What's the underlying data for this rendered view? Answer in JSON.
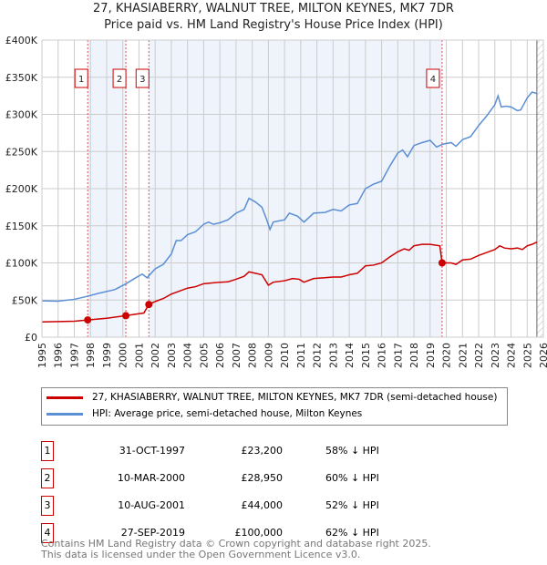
{
  "chart_data": {
    "type": "line",
    "title": "27, KHASIABERRY, WALNUT TREE, MILTON KEYNES, MK7 7DR",
    "subtitle": "Price paid vs. HM Land Registry's House Price Index (HPI)",
    "xlim": [
      1995,
      2026
    ],
    "ylim": [
      0,
      400000
    ],
    "x_ticks": [
      "1995",
      "1996",
      "1997",
      "1998",
      "1999",
      "2000",
      "2001",
      "2002",
      "2003",
      "2004",
      "2005",
      "2006",
      "2007",
      "2008",
      "2009",
      "2010",
      "2011",
      "2012",
      "2013",
      "2014",
      "2015",
      "2016",
      "2017",
      "2018",
      "2019",
      "2020",
      "2021",
      "2022",
      "2023",
      "2024",
      "2025",
      "2026"
    ],
    "y_ticks": [
      {
        "v": 0,
        "l": "£0"
      },
      {
        "v": 50000,
        "l": "£50K"
      },
      {
        "v": 100000,
        "l": "£100K"
      },
      {
        "v": 150000,
        "l": "£150K"
      },
      {
        "v": 200000,
        "l": "£200K"
      },
      {
        "v": 250000,
        "l": "£250K"
      },
      {
        "v": 300000,
        "l": "£300K"
      },
      {
        "v": 350000,
        "l": "£350K"
      },
      {
        "v": 400000,
        "l": "£400K"
      }
    ],
    "grid": true,
    "series": [
      {
        "name": "27, KHASIABERRY, WALNUT TREE, MILTON KEYNES, MK7 7DR (semi-detached house)",
        "color": "#cc0000",
        "x": [
          1995,
          1996,
          1997,
          1997.83,
          1999,
          2000.19,
          2000.8,
          2001.3,
          2001.61,
          2002,
          2002.5,
          2003,
          2003.5,
          2004,
          2004.5,
          2005,
          2005.5,
          2006,
          2006.5,
          2007,
          2007.5,
          2007.8,
          2008.2,
          2008.6,
          2009,
          2009.3,
          2010,
          2010.5,
          2010.9,
          2011.2,
          2011.8,
          2012.5,
          2013,
          2013.5,
          2014,
          2014.5,
          2015,
          2015.5,
          2016,
          2016.5,
          2017,
          2017.4,
          2017.7,
          2018,
          2018.5,
          2019,
          2019.6,
          2019.74,
          2020.3,
          2020.6,
          2021,
          2021.5,
          2022,
          2022.5,
          2023,
          2023.3,
          2023.6,
          2024,
          2024.4,
          2024.7,
          2025,
          2025.3,
          2025.6
        ],
        "y": [
          20500,
          21000,
          21500,
          23200,
          25500,
          28950,
          31000,
          32500,
          44000,
          48000,
          52000,
          58000,
          62000,
          66000,
          68000,
          72000,
          73000,
          74000,
          74500,
          78000,
          82000,
          88000,
          86000,
          84000,
          70000,
          74000,
          76000,
          79000,
          78000,
          74000,
          79000,
          80000,
          81000,
          81000,
          84000,
          86000,
          96000,
          97000,
          100000,
          108000,
          115000,
          119000,
          117000,
          123000,
          125000,
          125000,
          123000,
          100000,
          100000,
          98000,
          104000,
          105000,
          110000,
          114000,
          118000,
          123000,
          120000,
          119000,
          120000,
          118000,
          123000,
          125000,
          128000
        ]
      },
      {
        "name": "HPI: Average price, semi-detached house, Milton Keynes",
        "color": "#5b8fd4",
        "x": [
          1995,
          1996,
          1997,
          1997.8,
          1998.5,
          1999.5,
          2000.2,
          2000.8,
          2001.2,
          2001.5,
          2002,
          2002.5,
          2003,
          2003.3,
          2003.6,
          2004,
          2004.5,
          2005,
          2005.3,
          2005.6,
          2006,
          2006.5,
          2007,
          2007.5,
          2007.8,
          2008.2,
          2008.6,
          2008.9,
          2009.1,
          2009.3,
          2010,
          2010.3,
          2010.8,
          2011.2,
          2011.8,
          2012.5,
          2013,
          2013.5,
          2014,
          2014.5,
          2015,
          2015.5,
          2016,
          2016.5,
          2017,
          2017.3,
          2017.6,
          2018,
          2018.5,
          2019,
          2019.4,
          2019.8,
          2020.3,
          2020.6,
          2021,
          2021.5,
          2022,
          2022.5,
          2023,
          2023.2,
          2023.4,
          2023.7,
          2024,
          2024.4,
          2024.6,
          2025,
          2025.3,
          2025.6
        ],
        "y": [
          49000,
          48500,
          51000,
          55000,
          59000,
          64000,
          72000,
          80000,
          85000,
          80000,
          92000,
          98000,
          112000,
          130000,
          130000,
          138000,
          142000,
          152000,
          155000,
          152000,
          154000,
          158000,
          167000,
          172000,
          187000,
          182000,
          175000,
          158000,
          145000,
          155000,
          158000,
          167000,
          163000,
          155000,
          167000,
          168000,
          172000,
          170000,
          178000,
          180000,
          200000,
          206000,
          210000,
          230000,
          248000,
          252000,
          243000,
          258000,
          262000,
          265000,
          256000,
          260000,
          262000,
          257000,
          266000,
          270000,
          285000,
          298000,
          313000,
          325000,
          310000,
          311000,
          310000,
          305000,
          306000,
          322000,
          330000,
          328000
        ]
      }
    ],
    "sales": [
      {
        "num": "1",
        "x": 1997.83,
        "y": 23200,
        "date": "31-OCT-1997",
        "price": "£23,200",
        "hpi": "58% ↓ HPI"
      },
      {
        "num": "2",
        "x": 2000.19,
        "y": 28950,
        "date": "10-MAR-2000",
        "price": "£28,950",
        "hpi": "60% ↓ HPI"
      },
      {
        "num": "3",
        "x": 2001.61,
        "y": 44000,
        "date": "10-AUG-2001",
        "price": "£44,000",
        "hpi": "52% ↓ HPI"
      },
      {
        "num": "4",
        "x": 2019.74,
        "y": 100000,
        "date": "27-SEP-2019",
        "price": "£100,000",
        "hpi": "62% ↓ HPI"
      }
    ],
    "forecast_start": 2025.6
  },
  "footer": [
    "Contains HM Land Registry data © Crown copyright and database right 2025.",
    "This data is licensed under the Open Government Licence v3.0."
  ]
}
